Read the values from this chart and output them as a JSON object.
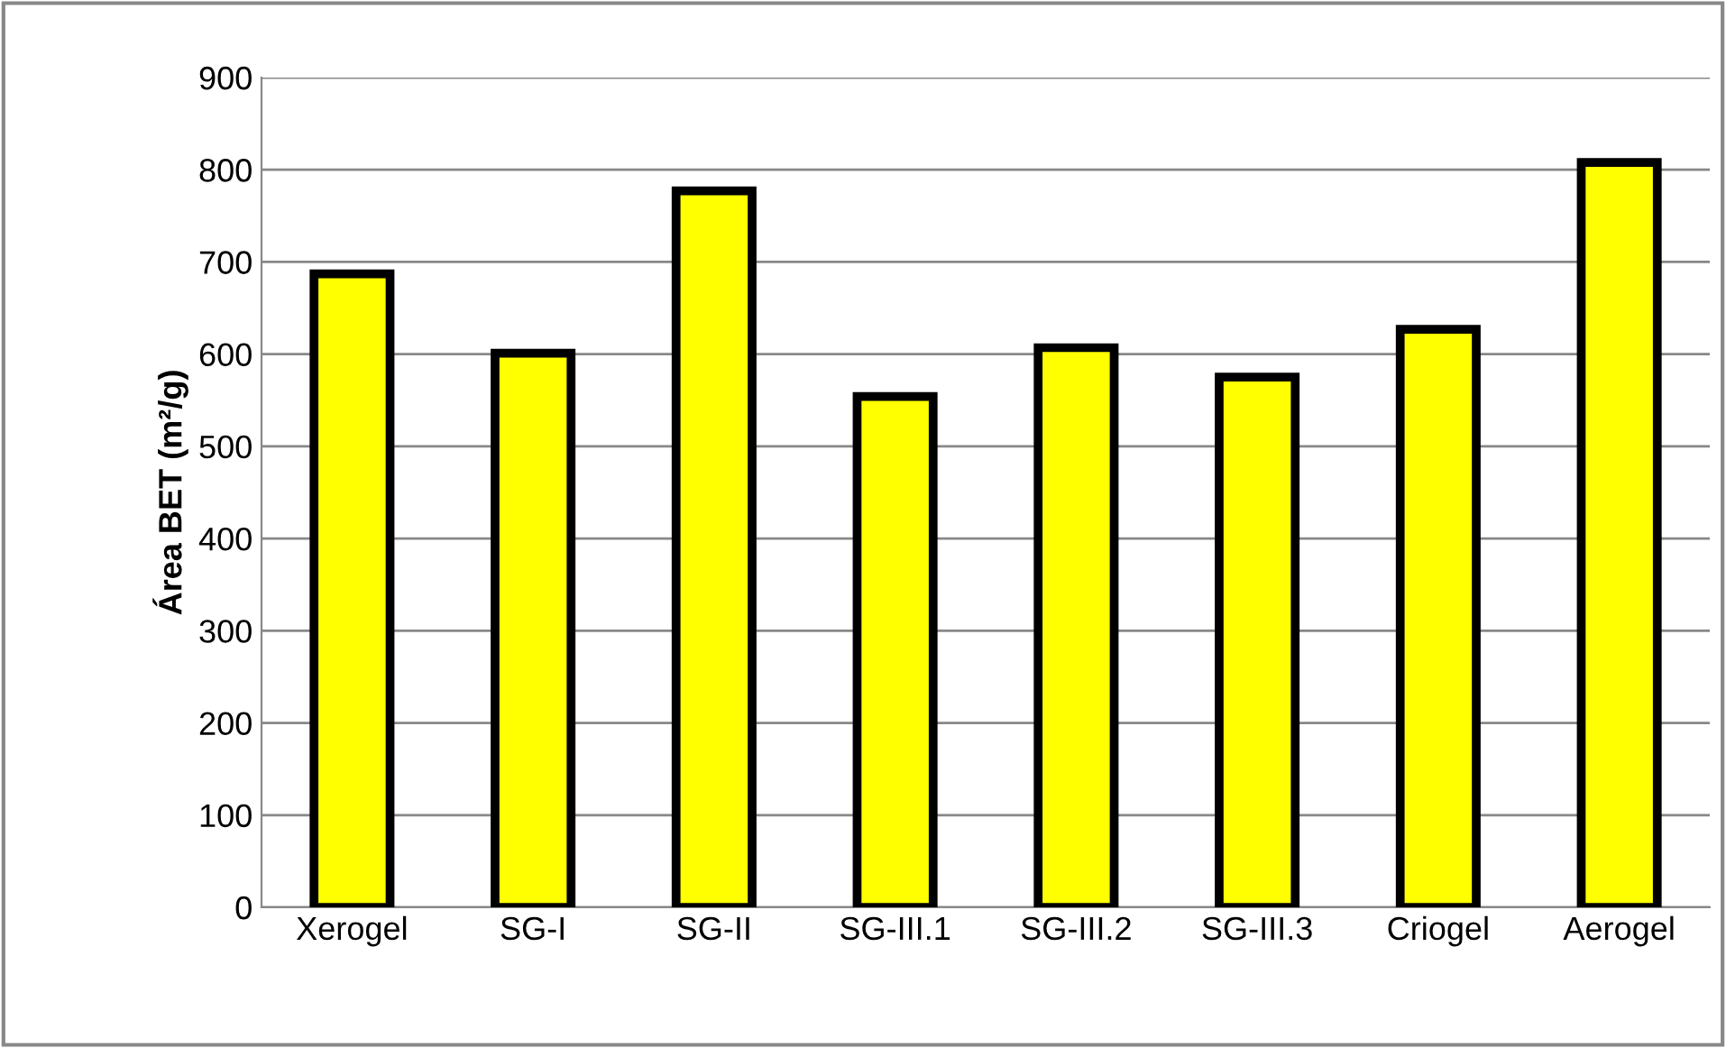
{
  "chart_data": {
    "type": "bar",
    "ylabel": "Área BET (m²/g)",
    "categories": [
      "Xerogel",
      "SG-I",
      "SG-II",
      "SG-III.1",
      "SG-III.2",
      "SG-III.3",
      "Criogel",
      "Aerogel"
    ],
    "values": [
      687,
      601,
      777,
      554,
      607,
      575,
      627,
      808
    ],
    "color": "#ffff00",
    "ylim": [
      0,
      900
    ],
    "yticks": [
      0,
      100,
      200,
      300,
      400,
      500,
      600,
      700,
      800,
      900
    ],
    "grid": "y",
    "legend": false
  }
}
